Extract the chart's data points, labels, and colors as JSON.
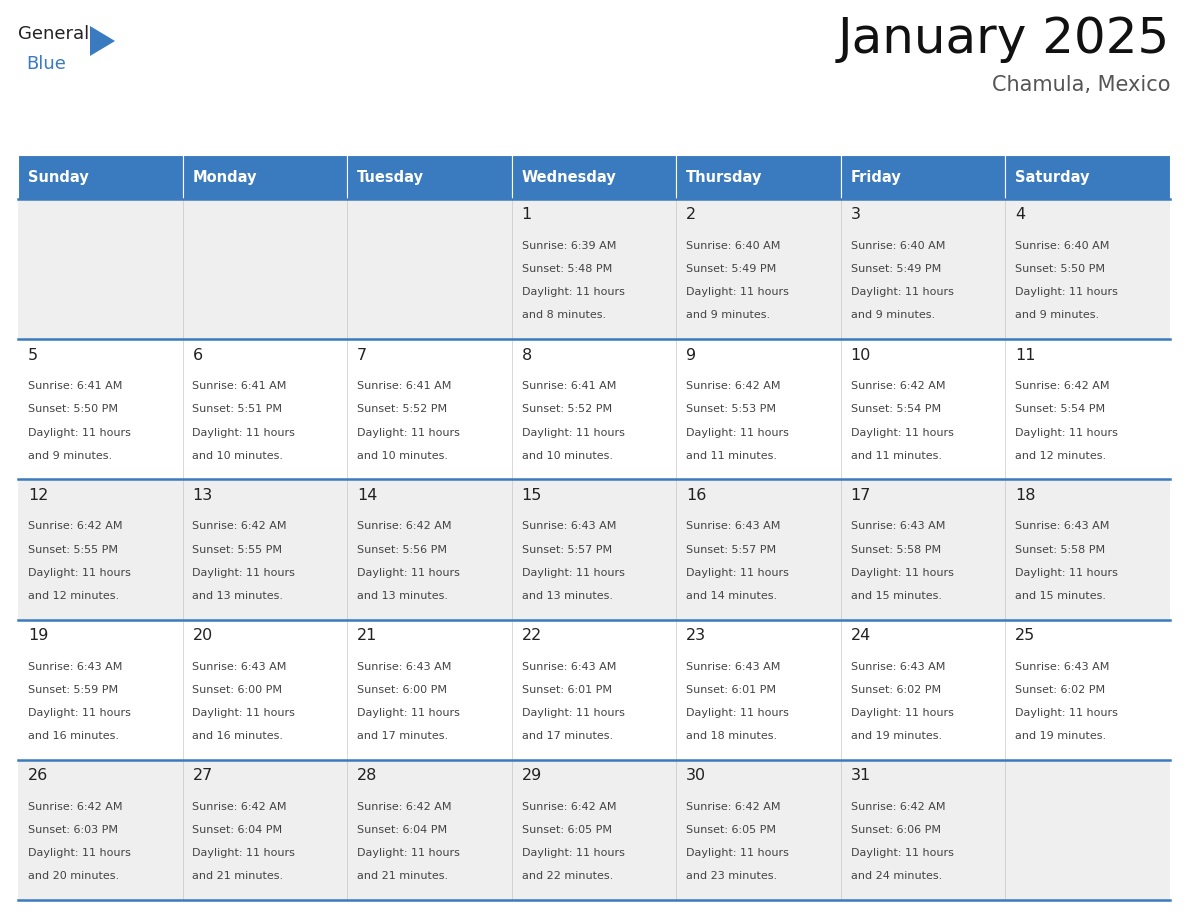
{
  "title": "January 2025",
  "subtitle": "Chamula, Mexico",
  "days_of_week": [
    "Sunday",
    "Monday",
    "Tuesday",
    "Wednesday",
    "Thursday",
    "Friday",
    "Saturday"
  ],
  "header_bg": "#3a7abf",
  "header_text": "#ffffff",
  "row_bg_odd": "#efefef",
  "row_bg_even": "#ffffff",
  "cell_border": "#3a7abf",
  "day_number_color": "#222222",
  "info_text_color": "#444444",
  "title_color": "#111111",
  "subtitle_color": "#555555",
  "logo_general_color": "#222222",
  "logo_blue_color": "#3a7abf",
  "logo_triangle_color": "#3a7abf",
  "calendar_data": [
    [
      null,
      null,
      null,
      {
        "day": "1",
        "sunrise": "6:39 AM",
        "sunset": "5:48 PM",
        "dl1": "Daylight: 11 hours",
        "dl2": "and 8 minutes."
      },
      {
        "day": "2",
        "sunrise": "6:40 AM",
        "sunset": "5:49 PM",
        "dl1": "Daylight: 11 hours",
        "dl2": "and 9 minutes."
      },
      {
        "day": "3",
        "sunrise": "6:40 AM",
        "sunset": "5:49 PM",
        "dl1": "Daylight: 11 hours",
        "dl2": "and 9 minutes."
      },
      {
        "day": "4",
        "sunrise": "6:40 AM",
        "sunset": "5:50 PM",
        "dl1": "Daylight: 11 hours",
        "dl2": "and 9 minutes."
      }
    ],
    [
      {
        "day": "5",
        "sunrise": "6:41 AM",
        "sunset": "5:50 PM",
        "dl1": "Daylight: 11 hours",
        "dl2": "and 9 minutes."
      },
      {
        "day": "6",
        "sunrise": "6:41 AM",
        "sunset": "5:51 PM",
        "dl1": "Daylight: 11 hours",
        "dl2": "and 10 minutes."
      },
      {
        "day": "7",
        "sunrise": "6:41 AM",
        "sunset": "5:52 PM",
        "dl1": "Daylight: 11 hours",
        "dl2": "and 10 minutes."
      },
      {
        "day": "8",
        "sunrise": "6:41 AM",
        "sunset": "5:52 PM",
        "dl1": "Daylight: 11 hours",
        "dl2": "and 10 minutes."
      },
      {
        "day": "9",
        "sunrise": "6:42 AM",
        "sunset": "5:53 PM",
        "dl1": "Daylight: 11 hours",
        "dl2": "and 11 minutes."
      },
      {
        "day": "10",
        "sunrise": "6:42 AM",
        "sunset": "5:54 PM",
        "dl1": "Daylight: 11 hours",
        "dl2": "and 11 minutes."
      },
      {
        "day": "11",
        "sunrise": "6:42 AM",
        "sunset": "5:54 PM",
        "dl1": "Daylight: 11 hours",
        "dl2": "and 12 minutes."
      }
    ],
    [
      {
        "day": "12",
        "sunrise": "6:42 AM",
        "sunset": "5:55 PM",
        "dl1": "Daylight: 11 hours",
        "dl2": "and 12 minutes."
      },
      {
        "day": "13",
        "sunrise": "6:42 AM",
        "sunset": "5:55 PM",
        "dl1": "Daylight: 11 hours",
        "dl2": "and 13 minutes."
      },
      {
        "day": "14",
        "sunrise": "6:42 AM",
        "sunset": "5:56 PM",
        "dl1": "Daylight: 11 hours",
        "dl2": "and 13 minutes."
      },
      {
        "day": "15",
        "sunrise": "6:43 AM",
        "sunset": "5:57 PM",
        "dl1": "Daylight: 11 hours",
        "dl2": "and 13 minutes."
      },
      {
        "day": "16",
        "sunrise": "6:43 AM",
        "sunset": "5:57 PM",
        "dl1": "Daylight: 11 hours",
        "dl2": "and 14 minutes."
      },
      {
        "day": "17",
        "sunrise": "6:43 AM",
        "sunset": "5:58 PM",
        "dl1": "Daylight: 11 hours",
        "dl2": "and 15 minutes."
      },
      {
        "day": "18",
        "sunrise": "6:43 AM",
        "sunset": "5:58 PM",
        "dl1": "Daylight: 11 hours",
        "dl2": "and 15 minutes."
      }
    ],
    [
      {
        "day": "19",
        "sunrise": "6:43 AM",
        "sunset": "5:59 PM",
        "dl1": "Daylight: 11 hours",
        "dl2": "and 16 minutes."
      },
      {
        "day": "20",
        "sunrise": "6:43 AM",
        "sunset": "6:00 PM",
        "dl1": "Daylight: 11 hours",
        "dl2": "and 16 minutes."
      },
      {
        "day": "21",
        "sunrise": "6:43 AM",
        "sunset": "6:00 PM",
        "dl1": "Daylight: 11 hours",
        "dl2": "and 17 minutes."
      },
      {
        "day": "22",
        "sunrise": "6:43 AM",
        "sunset": "6:01 PM",
        "dl1": "Daylight: 11 hours",
        "dl2": "and 17 minutes."
      },
      {
        "day": "23",
        "sunrise": "6:43 AM",
        "sunset": "6:01 PM",
        "dl1": "Daylight: 11 hours",
        "dl2": "and 18 minutes."
      },
      {
        "day": "24",
        "sunrise": "6:43 AM",
        "sunset": "6:02 PM",
        "dl1": "Daylight: 11 hours",
        "dl2": "and 19 minutes."
      },
      {
        "day": "25",
        "sunrise": "6:43 AM",
        "sunset": "6:02 PM",
        "dl1": "Daylight: 11 hours",
        "dl2": "and 19 minutes."
      }
    ],
    [
      {
        "day": "26",
        "sunrise": "6:42 AM",
        "sunset": "6:03 PM",
        "dl1": "Daylight: 11 hours",
        "dl2": "and 20 minutes."
      },
      {
        "day": "27",
        "sunrise": "6:42 AM",
        "sunset": "6:04 PM",
        "dl1": "Daylight: 11 hours",
        "dl2": "and 21 minutes."
      },
      {
        "day": "28",
        "sunrise": "6:42 AM",
        "sunset": "6:04 PM",
        "dl1": "Daylight: 11 hours",
        "dl2": "and 21 minutes."
      },
      {
        "day": "29",
        "sunrise": "6:42 AM",
        "sunset": "6:05 PM",
        "dl1": "Daylight: 11 hours",
        "dl2": "and 22 minutes."
      },
      {
        "day": "30",
        "sunrise": "6:42 AM",
        "sunset": "6:05 PM",
        "dl1": "Daylight: 11 hours",
        "dl2": "and 23 minutes."
      },
      {
        "day": "31",
        "sunrise": "6:42 AM",
        "sunset": "6:06 PM",
        "dl1": "Daylight: 11 hours",
        "dl2": "and 24 minutes."
      },
      null
    ]
  ],
  "figsize": [
    11.88,
    9.18
  ],
  "dpi": 100
}
